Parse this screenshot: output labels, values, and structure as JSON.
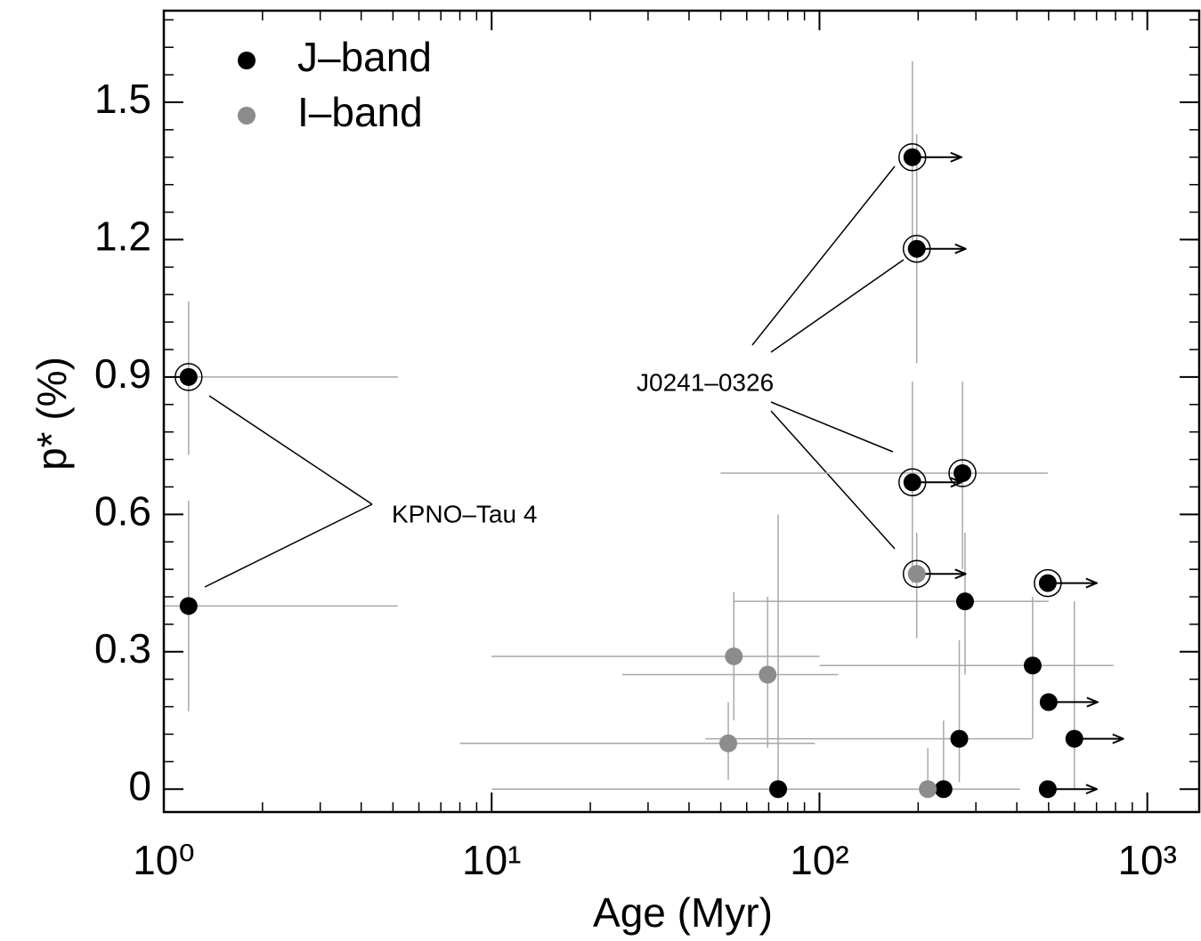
{
  "chart_data": {
    "type": "scatter",
    "xlabel": "Age (Myr)",
    "ylabel": "p* (%)",
    "xscale": "log",
    "xlim": [
      1,
      1440
    ],
    "ylim": [
      -0.05,
      1.7
    ],
    "xticks": [
      {
        "value": 1,
        "label": "10⁰"
      },
      {
        "value": 10,
        "label": "10¹"
      },
      {
        "value": 100,
        "label": "10²"
      },
      {
        "value": 1000,
        "label": "10³"
      }
    ],
    "yticks": [
      0,
      0.3,
      0.6,
      0.9,
      1.2,
      1.5
    ],
    "legend": "upper left",
    "annotations": [
      "KPNO–Tau 4",
      "J0241–0326"
    ],
    "series": [
      {
        "name": "J–band",
        "color": "#000000",
        "x": [
          1.19,
          1.19,
          192,
          198,
          192,
          273,
          497,
          278,
          447,
          500,
          599,
          267,
          74.8,
          239,
          497
        ],
        "values": [
          0.9,
          0.4,
          1.38,
          1.18,
          0.67,
          0.69,
          0.45,
          0.41,
          0.27,
          0.19,
          0.11,
          0.11,
          0,
          0,
          0
        ],
        "x_low": [
          1.0,
          1.0,
          null,
          null,
          null,
          49.9,
          null,
          55,
          100,
          null,
          null,
          44.9,
          10,
          null,
          null
        ],
        "x_high": [
          5.17,
          5.17,
          null,
          null,
          null,
          497,
          null,
          500,
          789,
          null,
          null,
          444,
          409,
          null,
          null
        ],
        "y_low": [
          0.73,
          0.17,
          1.17,
          0.93,
          0.45,
          0.48,
          null,
          0.25,
          0.11,
          null,
          0,
          0.015,
          0,
          0,
          null
        ],
        "y_high": [
          1.065,
          0.63,
          1.59,
          1.43,
          0.89,
          0.89,
          null,
          0.56,
          0.42,
          null,
          0.41,
          0.325,
          0.6,
          0.15,
          null
        ],
        "circled": [
          true,
          false,
          true,
          true,
          true,
          true,
          true,
          false,
          false,
          false,
          false,
          false,
          false,
          false,
          false
        ],
        "lower_limit": [
          false,
          false,
          true,
          true,
          true,
          false,
          true,
          false,
          false,
          true,
          true,
          false,
          false,
          false,
          true
        ]
      },
      {
        "name": "I–band",
        "color": "#8c8c8c",
        "x": [
          198,
          54.8,
          69.5,
          52.7,
          214
        ],
        "values": [
          0.47,
          0.29,
          0.25,
          0.1,
          0
        ],
        "x_low": [
          null,
          10,
          25,
          8.0,
          null
        ],
        "x_high": [
          null,
          100,
          114,
          97,
          null
        ],
        "y_low": [
          0.33,
          0.15,
          0.09,
          0.02,
          0
        ],
        "y_high": [
          0.56,
          0.43,
          0.42,
          0.19,
          0.09
        ],
        "circled": [
          true,
          false,
          false,
          false,
          false
        ],
        "lower_limit": [
          true,
          false,
          false,
          false,
          false
        ]
      }
    ]
  }
}
